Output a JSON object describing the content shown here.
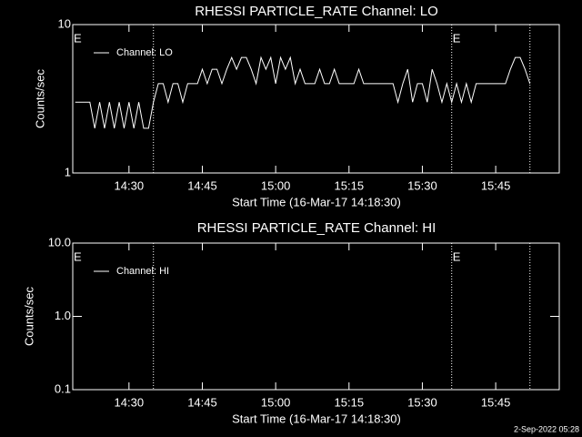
{
  "chart_data": [
    {
      "type": "line",
      "title": "RHESSI PARTICLE_RATE Channel: LO",
      "xlabel": "Start Time (16-Mar-17 14:18:30)",
      "ylabel": "Counts/sec",
      "log_y": true,
      "xlim": [
        "14:18:30",
        "15:58:00"
      ],
      "xticks": [
        "14:30",
        "14:45",
        "15:00",
        "15:15",
        "15:30",
        "15:45"
      ],
      "ylim": [
        1,
        10
      ],
      "yticks": [
        1,
        10
      ],
      "x": [
        "14:19",
        "14:20",
        "14:21",
        "14:22",
        "14:23",
        "14:24",
        "14:25",
        "14:26",
        "14:27",
        "14:28",
        "14:29",
        "14:30",
        "14:31",
        "14:32",
        "14:33",
        "14:34",
        "14:35",
        "14:36",
        "14:37",
        "14:38",
        "14:39",
        "14:40",
        "14:41",
        "14:42",
        "14:43",
        "14:44",
        "14:45",
        "14:46",
        "14:47",
        "14:48",
        "14:49",
        "14:50",
        "14:51",
        "14:52",
        "14:53",
        "14:54",
        "14:55",
        "14:56",
        "14:57",
        "14:58",
        "14:59",
        "15:00",
        "15:01",
        "15:02",
        "15:03",
        "15:04",
        "15:05",
        "15:06",
        "15:07",
        "15:08",
        "15:09",
        "15:10",
        "15:11",
        "15:12",
        "15:13",
        "15:14",
        "15:15",
        "15:16",
        "15:17",
        "15:18",
        "15:19",
        "15:20",
        "15:21",
        "15:22",
        "15:23",
        "15:24",
        "15:25",
        "15:26",
        "15:27",
        "15:28",
        "15:29",
        "15:30",
        "15:31",
        "15:32",
        "15:33",
        "15:34",
        "15:35",
        "15:36",
        "15:37",
        "15:38",
        "15:39",
        "15:40",
        "15:41",
        "15:42",
        "15:43",
        "15:44",
        "15:45",
        "15:46",
        "15:47",
        "15:48",
        "15:49",
        "15:50",
        "15:51",
        "15:52"
      ],
      "series": [
        {
          "name": "Channel: LO",
          "color": "#ffffff",
          "values": [
            3,
            3,
            3,
            3,
            2,
            3,
            2,
            3,
            2,
            3,
            2,
            3,
            2,
            3,
            2,
            2,
            3,
            4,
            4,
            3,
            4,
            4,
            3,
            4,
            4,
            4,
            5,
            4,
            5,
            5,
            4,
            5,
            6,
            5,
            6,
            6,
            5,
            4,
            6,
            5,
            6,
            4,
            6,
            5,
            6,
            4,
            5,
            4,
            4,
            4,
            5,
            4,
            4,
            5,
            4,
            4,
            4,
            4,
            5,
            4,
            4,
            4,
            4,
            4,
            4,
            4,
            3,
            4,
            5,
            3,
            4,
            4,
            3,
            5,
            4,
            3,
            4,
            3,
            4,
            3,
            4,
            3,
            4,
            4,
            4,
            4,
            4,
            4,
            4,
            5,
            6,
            6,
            5,
            4
          ]
        }
      ],
      "vlines": [
        "14:35",
        "15:36",
        "15:52"
      ],
      "annotations": [
        {
          "x": "14:18:30",
          "label": "E"
        },
        {
          "x": "15:36",
          "label": "E"
        }
      ]
    },
    {
      "type": "line",
      "title": "RHESSI PARTICLE_RATE Channel: HI",
      "xlabel": "Start Time (16-Mar-17 14:18:30)",
      "ylabel": "Counts/sec",
      "log_y": true,
      "xlim": [
        "14:18:30",
        "15:58:00"
      ],
      "xticks": [
        "14:30",
        "14:45",
        "15:00",
        "15:15",
        "15:30",
        "15:45"
      ],
      "ylim": [
        0.1,
        10
      ],
      "yticks": [
        0.1,
        {
          "value": 1,
          "label": "1.0"
        },
        {
          "value": 10,
          "label": "10.0"
        }
      ],
      "x": [],
      "series": [
        {
          "name": "Channel: HI",
          "color": "#ffffff",
          "values": []
        }
      ],
      "vlines": [
        "14:35",
        "15:36",
        "15:52"
      ],
      "annotations": [
        {
          "x": "14:18:30",
          "label": "E"
        },
        {
          "x": "15:36",
          "label": "E"
        }
      ]
    }
  ],
  "footer": "2-Sep-2022 05:28"
}
